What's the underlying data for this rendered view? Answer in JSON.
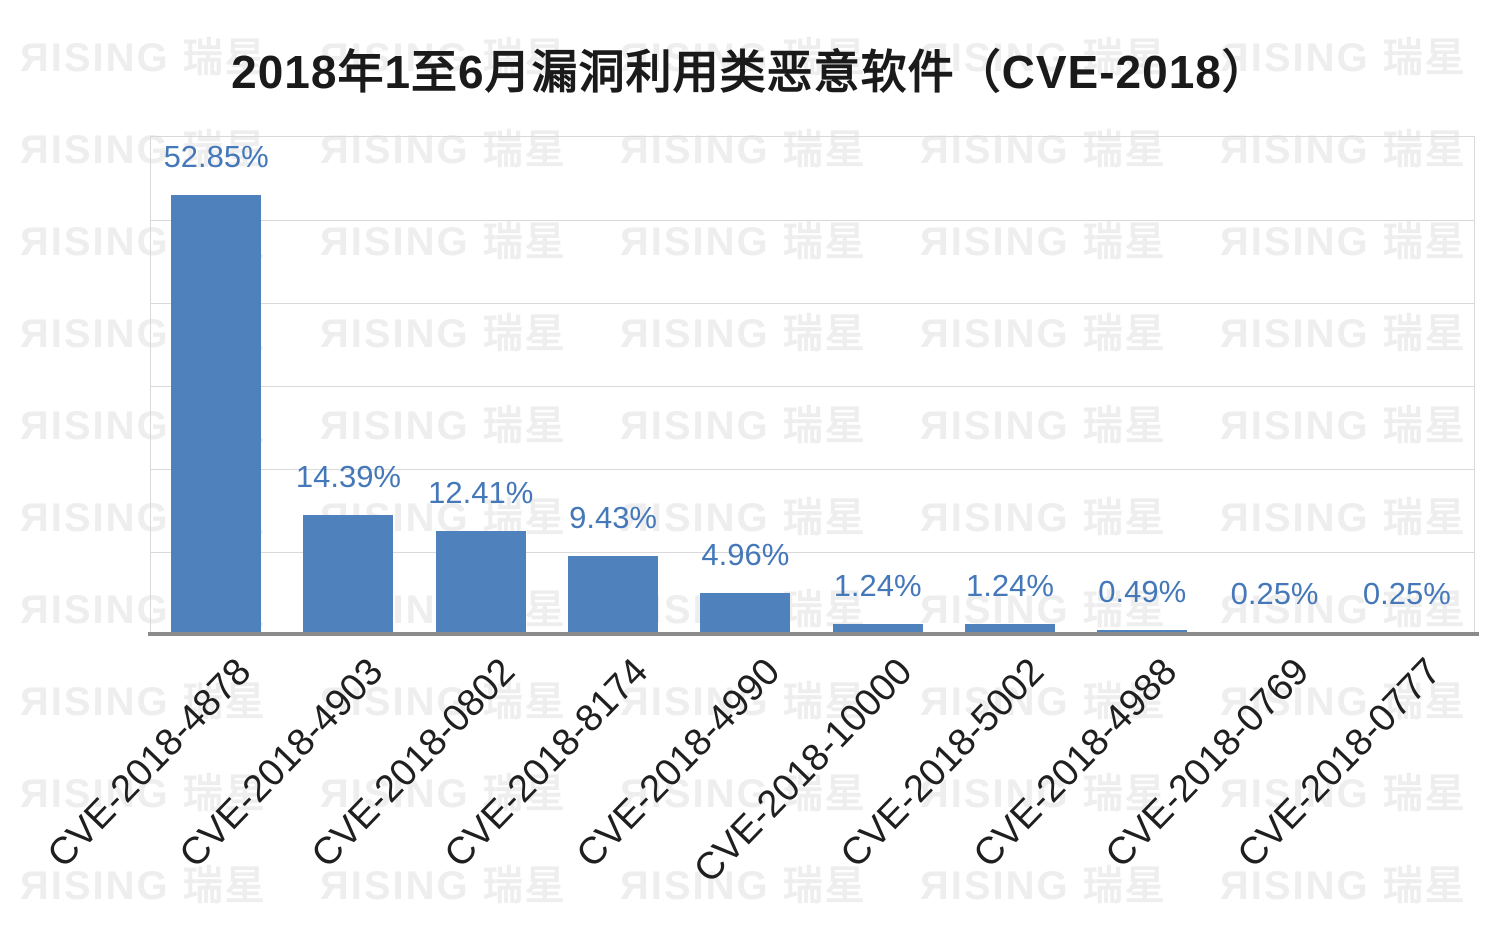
{
  "title": "2018年1至6月漏洞利用类恶意软件（CVE-2018）",
  "watermark": {
    "text": "ЯISING 瑞星",
    "color": "#eeeeee"
  },
  "colors": {
    "bar": "#4f81bd",
    "value_label": "#4478b9",
    "gridline": "#d9d9d9",
    "axis_line": "#8b8b8b",
    "title_text": "#1a1a1a",
    "tick_text": "#1f1f1f",
    "background": "#ffffff"
  },
  "chart_data": {
    "type": "bar",
    "title": "2018年1至6月漏洞利用类恶意软件（CVE-2018）",
    "categories": [
      "CVE-2018-4878",
      "CVE-2018-4903",
      "CVE-2018-0802",
      "CVE-2018-8174",
      "CVE-2018-4990",
      "CVE-2018-10000",
      "CVE-2018-5002",
      "CVE-2018-4988",
      "CVE-2018-0769",
      "CVE-2018-0777"
    ],
    "values": [
      52.85,
      14.39,
      12.41,
      9.43,
      4.96,
      1.24,
      1.24,
      0.49,
      0.25,
      0.25
    ],
    "data_labels": [
      "52.85%",
      "14.39%",
      "12.41%",
      "9.43%",
      "4.96%",
      "1.24%",
      "1.24%",
      "0.49%",
      "0.25%",
      "0.25%"
    ],
    "xlabel": "",
    "ylabel": "",
    "ylim": [
      0,
      60
    ],
    "gridline_step": 10,
    "grid": true,
    "legend": false,
    "y_tick_labels_shown": false,
    "data_label_position": "above-bar"
  }
}
